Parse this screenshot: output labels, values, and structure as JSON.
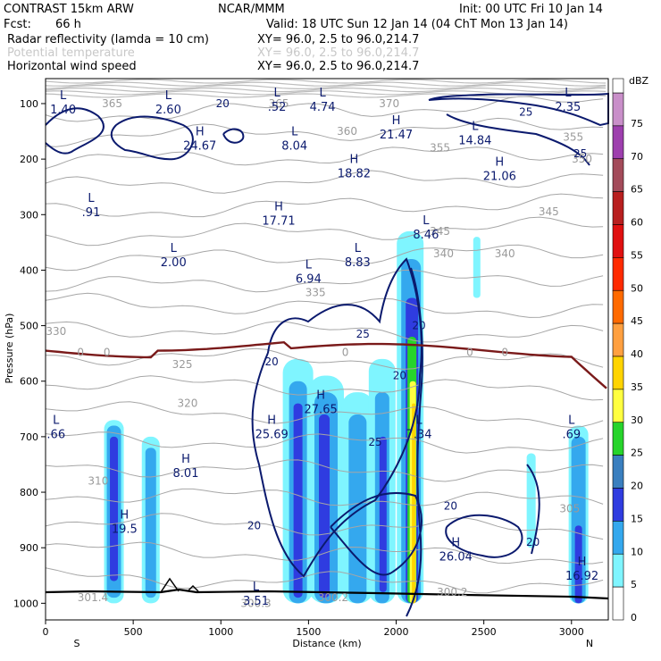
{
  "header": {
    "model": "CONTRAST 15km ARW",
    "org": "NCAR/MMM",
    "init": "Init: 00 UTC Fri 10 Jan 14",
    "fcst_label": "Fcst:",
    "fcst_value": "66 h",
    "valid": "Valid: 18 UTC Sun 12 Jan 14 (04 ChT Mon 13 Jan 14)",
    "fields": [
      {
        "name": "Radar reflectivity (lamda = 10 cm)",
        "xy": "XY=  96.0,  2.5 to  96.0,214.7",
        "color": "#000000"
      },
      {
        "name": "Potential temperature",
        "xy": "XY=  96.0,  2.5 to  96.0,214.7",
        "color": "#c8c8c8"
      },
      {
        "name": "Horizontal wind speed",
        "xy": "XY=  96.0,  2.5 to  96.0,214.7",
        "color": "#000000"
      }
    ]
  },
  "chart_data": {
    "type": "cross-section",
    "xlabel": "Distance (km)",
    "ylabel": "Pressure (hPa)",
    "x_ticks": [
      0,
      500,
      1000,
      1500,
      2000,
      2500,
      3000
    ],
    "x_end_labels": {
      "left": "S",
      "right": "N"
    },
    "xlim": [
      0,
      3210
    ],
    "y_ticks": [
      100,
      200,
      300,
      400,
      500,
      600,
      700,
      800,
      900,
      1000
    ],
    "ylim": [
      55,
      1030
    ],
    "colorbar": {
      "unit": "dBZ",
      "levels": [
        75,
        70,
        65,
        60,
        55,
        50,
        45,
        40,
        35,
        30,
        25,
        20,
        15,
        10,
        5,
        0
      ],
      "colors": [
        "#c98fc9",
        "#9e3fae",
        "#a34b5a",
        "#b81f1f",
        "#e01010",
        "#ff2a00",
        "#ff6a00",
        "#ffa040",
        "#ffd400",
        "#ffff40",
        "#27d42b",
        "#3a7fbf",
        "#2f3ce0",
        "#34a8ee",
        "#7ff5ff",
        "#ffffff"
      ]
    },
    "theta_labels": [
      {
        "text": "365",
        "x": 380,
        "p": 100
      },
      {
        "text": "365",
        "x": 1330,
        "p": 100
      },
      {
        "text": "370",
        "x": 1960,
        "p": 100
      },
      {
        "text": "360",
        "x": 1720,
        "p": 150
      },
      {
        "text": "355",
        "x": 2250,
        "p": 180
      },
      {
        "text": "355",
        "x": 3010,
        "p": 160
      },
      {
        "text": "350",
        "x": 3060,
        "p": 200
      },
      {
        "text": "345",
        "x": 2870,
        "p": 295
      },
      {
        "text": "345",
        "x": 2250,
        "p": 330
      },
      {
        "text": "340",
        "x": 2270,
        "p": 370
      },
      {
        "text": "340",
        "x": 2620,
        "p": 370
      },
      {
        "text": "335",
        "x": 1540,
        "p": 440
      },
      {
        "text": "330",
        "x": 60,
        "p": 510
      },
      {
        "text": "325",
        "x": 780,
        "p": 570
      },
      {
        "text": "320",
        "x": 810,
        "p": 640
      },
      {
        "text": "310",
        "x": 300,
        "p": 780
      },
      {
        "text": "305",
        "x": 2990,
        "p": 830
      },
      {
        "text": "301.4",
        "x": 270,
        "p": 990
      },
      {
        "text": "300.3",
        "x": 1200,
        "p": 1000
      },
      {
        "text": "300.2",
        "x": 1640,
        "p": 990
      },
      {
        "text": "300.2",
        "x": 2320,
        "p": 980
      }
    ],
    "wind_labels": [
      {
        "text": "20",
        "x": 1010,
        "p": 100
      },
      {
        "text": "25",
        "x": 2740,
        "p": 115
      },
      {
        "text": "25",
        "x": 3050,
        "p": 190
      },
      {
        "text": "25",
        "x": 1810,
        "p": 515
      },
      {
        "text": "20",
        "x": 2130,
        "p": 500
      },
      {
        "text": "20",
        "x": 1290,
        "p": 565
      },
      {
        "text": "20",
        "x": 2020,
        "p": 590
      },
      {
        "text": "25",
        "x": 1880,
        "p": 710
      },
      {
        "text": "20",
        "x": 2310,
        "p": 825
      },
      {
        "text": "20",
        "x": 1190,
        "p": 860
      },
      {
        "text": "20",
        "x": 2780,
        "p": 890
      }
    ],
    "freezing_label": "0",
    "extrema": [
      {
        "kind": "L",
        "value": "1.40",
        "x": 100,
        "p": 105
      },
      {
        "kind": "L",
        "value": "2.60",
        "x": 700,
        "p": 105
      },
      {
        "kind": "L",
        "value": ".52",
        "x": 1320,
        "p": 100
      },
      {
        "kind": "L",
        "value": "4.74",
        "x": 1580,
        "p": 100
      },
      {
        "kind": "L",
        "value": "2.35",
        "x": 2980,
        "p": 100
      },
      {
        "kind": "H",
        "value": "24.67",
        "x": 880,
        "p": 170
      },
      {
        "kind": "L",
        "value": "8.04",
        "x": 1420,
        "p": 170
      },
      {
        "kind": "H",
        "value": "21.47",
        "x": 2000,
        "p": 150
      },
      {
        "kind": "L",
        "value": "14.84",
        "x": 2450,
        "p": 160
      },
      {
        "kind": "H",
        "value": "18.82",
        "x": 1760,
        "p": 220
      },
      {
        "kind": "H",
        "value": "21.06",
        "x": 2590,
        "p": 225
      },
      {
        "kind": "L",
        "value": ".91",
        "x": 260,
        "p": 290
      },
      {
        "kind": "H",
        "value": "17.71",
        "x": 1330,
        "p": 305
      },
      {
        "kind": "L",
        "value": "8.46",
        "x": 2170,
        "p": 330
      },
      {
        "kind": "L",
        "value": "2.00",
        "x": 730,
        "p": 380
      },
      {
        "kind": "L",
        "value": "8.83",
        "x": 1780,
        "p": 380
      },
      {
        "kind": "L",
        "value": "6.94",
        "x": 1500,
        "p": 410
      },
      {
        "kind": "H",
        "value": "27.65",
        "x": 1570,
        "p": 645
      },
      {
        "kind": "H",
        "value": "25.69",
        "x": 1290,
        "p": 690
      },
      {
        "kind": "L",
        "value": "7.34",
        "x": 2130,
        "p": 690
      },
      {
        "kind": "L",
        "value": ".66",
        "x": 60,
        "p": 690
      },
      {
        "kind": "L",
        "value": ".69",
        "x": 3000,
        "p": 690
      },
      {
        "kind": "H",
        "value": "8.01",
        "x": 800,
        "p": 760
      },
      {
        "kind": "H",
        "value": "19.5",
        "x": 450,
        "p": 860
      },
      {
        "kind": "H",
        "value": "26.04",
        "x": 2340,
        "p": 910
      },
      {
        "kind": "H",
        "value": "16.92",
        "x": 3060,
        "p": 945
      },
      {
        "kind": "L",
        "value": "3.51",
        "x": 1200,
        "p": 990
      }
    ]
  }
}
